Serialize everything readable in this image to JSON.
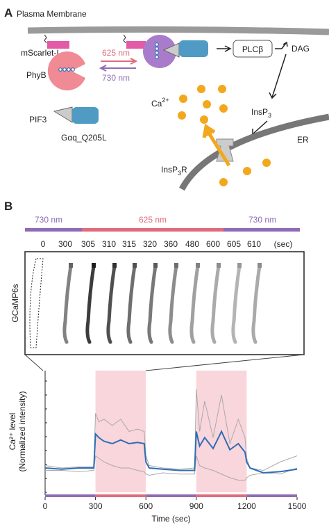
{
  "panel_a": {
    "label": "A",
    "membrane": "Plasma Membrane",
    "mscarlet": "mScarlet-I",
    "phyb": "PhyB",
    "light_on": "625 nm",
    "light_off": "730 nm",
    "plc": "PLCβ",
    "dag": "DAG",
    "insp3": {
      "text": "InsP",
      "sub": "3"
    },
    "ca": {
      "text": "Ca",
      "sup": "2+"
    },
    "pif3": "PIF3",
    "gaq": "Gαq_Q205L",
    "insp3r": {
      "text": "InsP",
      "sub": "3",
      "rest": "R"
    },
    "er": "ER"
  },
  "panel_b": {
    "label": "B",
    "light_bar": [
      "730 nm",
      "625 nm",
      "730 nm"
    ],
    "image_times": [
      "0",
      "300",
      "305",
      "310",
      "315",
      "320",
      "360",
      "480",
      "600",
      "605",
      "610",
      "(sec)"
    ],
    "image_label": "GCaMP6s"
  },
  "chart_data": {
    "type": "line",
    "xlabel": "Time (sec)",
    "ylabel": [
      "Ca²⁺ level",
      "(Normalized intensity)"
    ],
    "x": [
      0,
      100,
      200,
      290,
      300,
      320,
      350,
      400,
      450,
      500,
      550,
      590,
      600,
      620,
      700,
      800,
      890,
      900,
      920,
      950,
      1000,
      1050,
      1100,
      1150,
      1190,
      1200,
      1220,
      1300,
      1400,
      1500
    ],
    "series": [
      {
        "color": "#aaaaaa",
        "values": [
          0.22,
          0.2,
          0.21,
          0.21,
          0.65,
          0.58,
          0.6,
          0.55,
          0.6,
          0.5,
          0.52,
          0.5,
          0.3,
          0.22,
          0.2,
          0.19,
          0.2,
          0.85,
          0.5,
          0.75,
          0.45,
          0.8,
          0.4,
          0.6,
          0.45,
          0.28,
          0.2,
          0.18,
          0.25,
          0.3
        ]
      },
      {
        "color": "#aaaaaa",
        "values": [
          0.18,
          0.18,
          0.17,
          0.18,
          0.3,
          0.28,
          0.25,
          0.22,
          0.2,
          0.2,
          0.18,
          0.17,
          0.15,
          0.14,
          0.16,
          0.15,
          0.15,
          0.3,
          0.22,
          0.2,
          0.18,
          0.15,
          0.12,
          0.1,
          0.1,
          0.12,
          0.14,
          0.16,
          0.15,
          0.2
        ]
      },
      {
        "color": "#2f6db5",
        "values": [
          0.2,
          0.19,
          0.2,
          0.2,
          0.48,
          0.45,
          0.42,
          0.4,
          0.43,
          0.4,
          0.41,
          0.4,
          0.25,
          0.2,
          0.19,
          0.18,
          0.18,
          0.5,
          0.38,
          0.45,
          0.36,
          0.5,
          0.35,
          0.4,
          0.33,
          0.25,
          0.2,
          0.16,
          0.17,
          0.19
        ]
      }
    ],
    "xlim": [
      0,
      1500
    ],
    "ylim": [
      0,
      1
    ],
    "xticks": [
      0,
      300,
      600,
      900,
      1200,
      1500
    ],
    "shaded": [
      [
        300,
        600
      ],
      [
        900,
        1200
      ]
    ],
    "shade_color": "#f9d5dc",
    "on_color": "#e06b7d",
    "off_color": "#8f6bb5"
  }
}
